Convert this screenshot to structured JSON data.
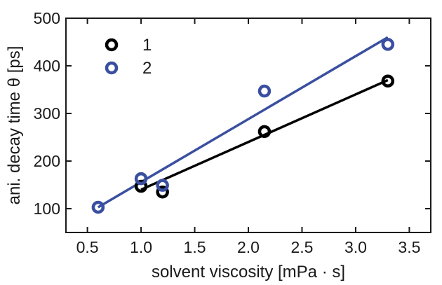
{
  "chart_data": {
    "type": "scatter",
    "xlabel": "solvent viscosity [mPa · s]",
    "ylabel": "ani. decay time θ [ps]",
    "xlim": [
      0.3,
      3.7
    ],
    "ylim": [
      50,
      500
    ],
    "x_ticks": [
      "0.5",
      "1.0",
      "1.5",
      "2.0",
      "2.5",
      "3.0",
      "3.5"
    ],
    "y_ticks": [
      "100",
      "200",
      "300",
      "400",
      "500"
    ],
    "grid": false,
    "legend_position": "top-left",
    "series": [
      {
        "name": "1",
        "color": "#000000",
        "points": [
          [
            1.0,
            147
          ],
          [
            1.2,
            135
          ],
          [
            2.15,
            262
          ],
          [
            3.3,
            368
          ]
        ],
        "fit": [
          [
            1.0,
            140
          ],
          [
            3.3,
            370
          ]
        ]
      },
      {
        "name": "2",
        "color": "#3a4fa0",
        "points": [
          [
            0.6,
            103
          ],
          [
            1.0,
            163
          ],
          [
            1.2,
            149
          ],
          [
            2.15,
            347
          ],
          [
            3.3,
            445
          ]
        ],
        "fit": [
          [
            0.6,
            103
          ],
          [
            3.3,
            460
          ]
        ]
      }
    ]
  }
}
